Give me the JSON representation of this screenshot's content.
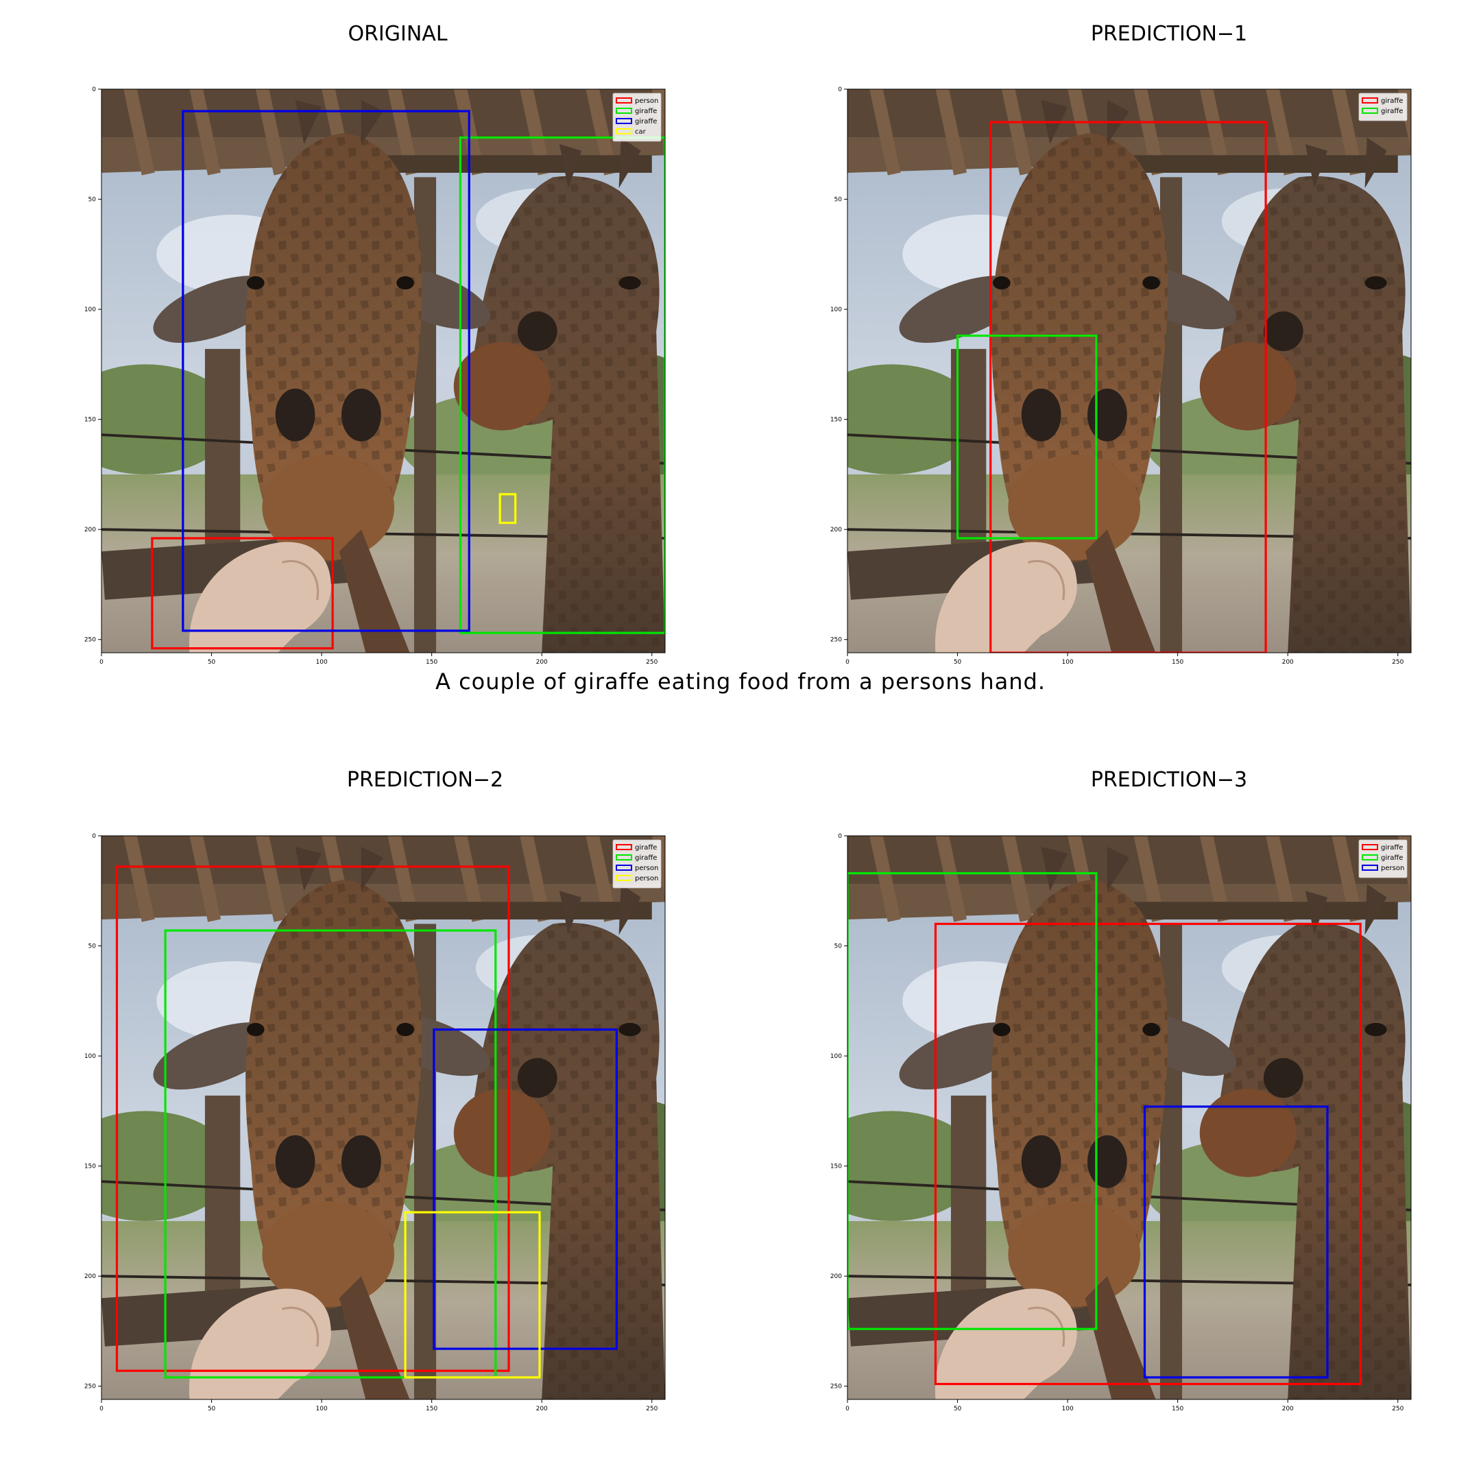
{
  "caption": "A couple of giraffe eating food from a persons hand.",
  "axis": {
    "xlim": [
      0,
      256
    ],
    "ylim": [
      256,
      0
    ],
    "x_ticks": [
      "0",
      "50",
      "100",
      "150",
      "200",
      "250"
    ],
    "y_ticks": [
      "0",
      "50",
      "100",
      "150",
      "200",
      "250"
    ],
    "tick_values": [
      0,
      50,
      100,
      150,
      200,
      250
    ]
  },
  "colors": {
    "red": "#ff0000",
    "green": "#00e600",
    "blue": "#0000e6",
    "yellow": "#ffff00"
  },
  "panels": [
    {
      "title": "ORIGINAL",
      "legend": [
        {
          "label": "person",
          "color": "red"
        },
        {
          "label": "giraffe",
          "color": "green"
        },
        {
          "label": "giraffe",
          "color": "blue"
        },
        {
          "label": "car",
          "color": "yellow"
        }
      ],
      "boxes": [
        {
          "label": "person",
          "color": "red",
          "x0": 23,
          "y0": 204,
          "x1": 105,
          "y1": 254
        },
        {
          "label": "giraffe",
          "color": "green",
          "x0": 163,
          "y0": 22,
          "x1": 256,
          "y1": 247
        },
        {
          "label": "giraffe",
          "color": "blue",
          "x0": 37,
          "y0": 10,
          "x1": 167,
          "y1": 246
        },
        {
          "label": "car",
          "color": "yellow",
          "x0": 181,
          "y0": 184,
          "x1": 188,
          "y1": 197
        }
      ]
    },
    {
      "title": "PREDICTION−1",
      "legend": [
        {
          "label": "giraffe",
          "color": "red"
        },
        {
          "label": "giraffe",
          "color": "green"
        }
      ],
      "boxes": [
        {
          "label": "giraffe",
          "color": "red",
          "x0": 65,
          "y0": 15,
          "x1": 190,
          "y1": 256
        },
        {
          "label": "giraffe",
          "color": "green",
          "x0": 50,
          "y0": 112,
          "x1": 113,
          "y1": 204
        }
      ]
    },
    {
      "title": "PREDICTION−2",
      "legend": [
        {
          "label": "giraffe",
          "color": "red"
        },
        {
          "label": "giraffe",
          "color": "green"
        },
        {
          "label": "person",
          "color": "blue"
        },
        {
          "label": "person",
          "color": "yellow"
        }
      ],
      "boxes": [
        {
          "label": "giraffe",
          "color": "red",
          "x0": 7,
          "y0": 14,
          "x1": 185,
          "y1": 243
        },
        {
          "label": "giraffe",
          "color": "green",
          "x0": 29,
          "y0": 43,
          "x1": 179,
          "y1": 246
        },
        {
          "label": "person",
          "color": "blue",
          "x0": 151,
          "y0": 88,
          "x1": 234,
          "y1": 233
        },
        {
          "label": "person",
          "color": "yellow",
          "x0": 138,
          "y0": 171,
          "x1": 199,
          "y1": 246
        }
      ]
    },
    {
      "title": "PREDICTION−3",
      "legend": [
        {
          "label": "giraffe",
          "color": "red"
        },
        {
          "label": "giraffe",
          "color": "green"
        },
        {
          "label": "person",
          "color": "blue"
        }
      ],
      "boxes": [
        {
          "label": "giraffe",
          "color": "red",
          "x0": 40,
          "y0": 40,
          "x1": 233,
          "y1": 249
        },
        {
          "label": "giraffe",
          "color": "green",
          "x0": 0,
          "y0": 17,
          "x1": 113,
          "y1": 224
        },
        {
          "label": "person",
          "color": "blue",
          "x0": 135,
          "y0": 123,
          "x1": 218,
          "y1": 246
        }
      ]
    }
  ]
}
